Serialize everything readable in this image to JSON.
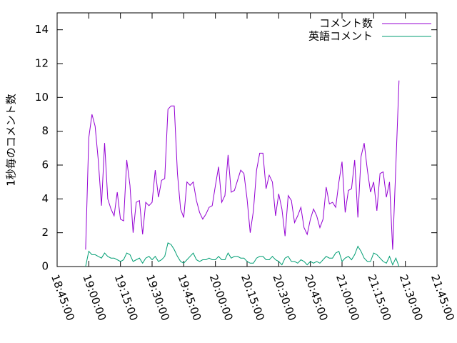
{
  "chart_data": {
    "type": "line",
    "ylabel": "1秒毎のコメント数",
    "x": [
      "18:58:30",
      "19:00:00",
      "19:01:30",
      "19:03:00",
      "19:04:30",
      "19:06:00",
      "19:07:30",
      "19:09:00",
      "19:10:30",
      "19:12:00",
      "19:13:30",
      "19:15:00",
      "19:16:30",
      "19:18:00",
      "19:19:30",
      "19:21:00",
      "19:22:30",
      "19:24:00",
      "19:25:30",
      "19:27:00",
      "19:28:30",
      "19:30:00",
      "19:31:30",
      "19:33:00",
      "19:34:30",
      "19:36:00",
      "19:37:30",
      "19:39:00",
      "19:40:30",
      "19:42:00",
      "19:43:30",
      "19:45:00",
      "19:46:30",
      "19:48:00",
      "19:49:30",
      "19:51:00",
      "19:52:30",
      "19:54:00",
      "19:55:30",
      "19:57:00",
      "19:58:30",
      "20:00:00",
      "20:01:30",
      "20:03:00",
      "20:04:30",
      "20:06:00",
      "20:07:30",
      "20:09:00",
      "20:10:30",
      "20:12:00",
      "20:13:30",
      "20:15:00",
      "20:16:30",
      "20:18:00",
      "20:19:30",
      "20:21:00",
      "20:22:30",
      "20:24:00",
      "20:25:30",
      "20:27:00",
      "20:28:30",
      "20:30:00",
      "20:31:30",
      "20:33:00",
      "20:34:30",
      "20:36:00",
      "20:37:30",
      "20:39:00",
      "20:40:30",
      "20:42:00",
      "20:43:30",
      "20:45:00",
      "20:46:30",
      "20:48:00",
      "20:49:30",
      "20:51:00",
      "20:52:30",
      "20:54:00",
      "20:55:30",
      "20:57:00",
      "20:58:30",
      "21:00:00",
      "21:01:30",
      "21:03:00",
      "21:04:30",
      "21:06:00",
      "21:07:30",
      "21:09:00",
      "21:10:30",
      "21:12:00",
      "21:13:30",
      "21:15:00",
      "21:16:30",
      "21:18:00",
      "21:19:30",
      "21:21:00",
      "21:22:30",
      "21:24:00",
      "21:25:30",
      "21:27:00"
    ],
    "series": [
      {
        "name": "コメント数",
        "color": "#9400d3",
        "values": [
          1,
          7.6,
          9,
          8.3,
          6.3,
          3.6,
          7.3,
          4,
          3.4,
          3,
          4.4,
          2.8,
          2.7,
          6.3,
          4.8,
          2,
          3.8,
          3.9,
          1.9,
          3.8,
          3.6,
          3.8,
          5.7,
          4.1,
          5.1,
          5.2,
          9.3,
          9.5,
          9.5,
          5.5,
          3.4,
          2.9,
          5,
          4.8,
          5,
          3.9,
          3.2,
          2.8,
          3.1,
          3.5,
          3.6,
          4.8,
          5.9,
          3.8,
          4.2,
          6.6,
          4.4,
          4.5,
          5.1,
          5.7,
          5.5,
          4,
          2,
          3.3,
          5.7,
          6.7,
          6.7,
          4.6,
          5.4,
          5,
          3,
          4.3,
          3.4,
          1.8,
          4.2,
          3.9,
          2.6,
          3,
          3.5,
          2.3,
          1.9,
          2.8,
          3.4,
          3,
          2.3,
          2.8,
          4.7,
          3.7,
          3.8,
          3.5,
          5,
          6.2,
          3.2,
          4.5,
          4.6,
          6.3,
          2.9,
          6.5,
          7.3,
          5.7,
          4.4,
          5,
          3.3,
          5.5,
          5.6,
          4.1,
          5,
          1,
          6,
          11
        ]
      },
      {
        "name": "英語コメント",
        "color": "#009e73",
        "values": [
          0,
          0.9,
          0.7,
          0.7,
          0.6,
          0.5,
          0.8,
          0.6,
          0.5,
          0.5,
          0.4,
          0.3,
          0.4,
          0.8,
          0.7,
          0.3,
          0.4,
          0.5,
          0.2,
          0.5,
          0.6,
          0.4,
          0.6,
          0.3,
          0.4,
          0.6,
          1.4,
          1.3,
          1.0,
          0.6,
          0.3,
          0.2,
          0.4,
          0.6,
          0.8,
          0.4,
          0.3,
          0.4,
          0.4,
          0.5,
          0.4,
          0.4,
          0.6,
          0.4,
          0.4,
          0.8,
          0.5,
          0.6,
          0.6,
          0.5,
          0.5,
          0.3,
          0.2,
          0.2,
          0.5,
          0.6,
          0.6,
          0.4,
          0.4,
          0.6,
          0.4,
          0.3,
          0.1,
          0.5,
          0.6,
          0.3,
          0.3,
          0.2,
          0.4,
          0.3,
          0.1,
          0.3,
          0.2,
          0.3,
          0.2,
          0.4,
          0.6,
          0.5,
          0.5,
          0.8,
          0.9,
          0.3,
          0.5,
          0.6,
          0.4,
          0.7,
          1.2,
          0.9,
          0.5,
          0.3,
          0.3,
          0.8,
          0.7,
          0.5,
          0.3,
          0.2,
          0.6,
          0.1,
          0.5,
          0
        ]
      }
    ],
    "xlim": [
      "18:45:00",
      "21:45:00"
    ],
    "xticks": [
      "18:45:00",
      "19:00:00",
      "19:15:00",
      "19:30:00",
      "19:45:00",
      "20:00:00",
      "20:15:00",
      "20:30:00",
      "20:45:00",
      "21:00:00",
      "21:15:00",
      "21:30:00",
      "21:45:00"
    ],
    "ylim": [
      0,
      15
    ],
    "yticks": [
      0,
      2,
      4,
      6,
      8,
      10,
      12,
      14
    ],
    "legend": "upper right"
  }
}
